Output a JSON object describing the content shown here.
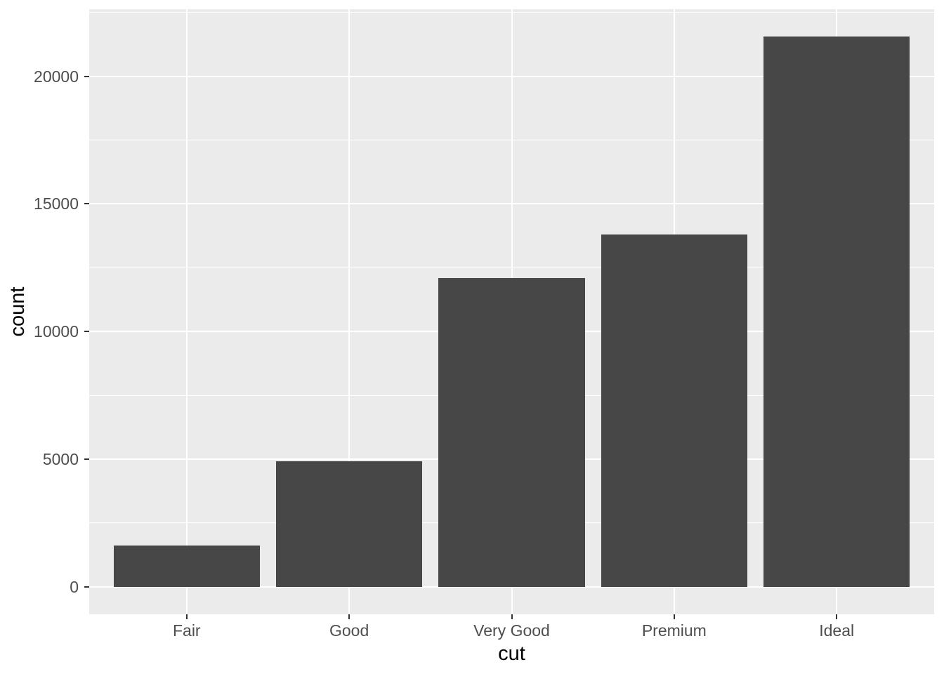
{
  "figure": {
    "background": "#FFFFFF"
  },
  "chart_data": {
    "type": "bar",
    "title": "",
    "categories": [
      "Fair",
      "Good",
      "Very Good",
      "Premium",
      "Ideal"
    ],
    "values": [
      1610,
      4906,
      12082,
      13791,
      21551
    ],
    "xlabel": "cut",
    "ylabel": "count",
    "ylim": [
      -1078,
      22629
    ],
    "y_major_ticks": [
      0,
      5000,
      10000,
      15000,
      20000
    ],
    "y_tick_labels": [
      "0",
      "5000",
      "10000",
      "15000",
      "20000"
    ],
    "y_minor_ticks": [
      2500,
      7500,
      12500,
      17500,
      22500
    ],
    "grid": true,
    "legend": "none",
    "bar_width_fraction": 0.9,
    "colors": {
      "bar_fill": "#474747",
      "panel_background": "#EBEBEB",
      "gridline": "#FFFFFF",
      "tick_label": "#4D4D4D",
      "axis_title": "#000000",
      "tick_mark": "#333333"
    }
  }
}
